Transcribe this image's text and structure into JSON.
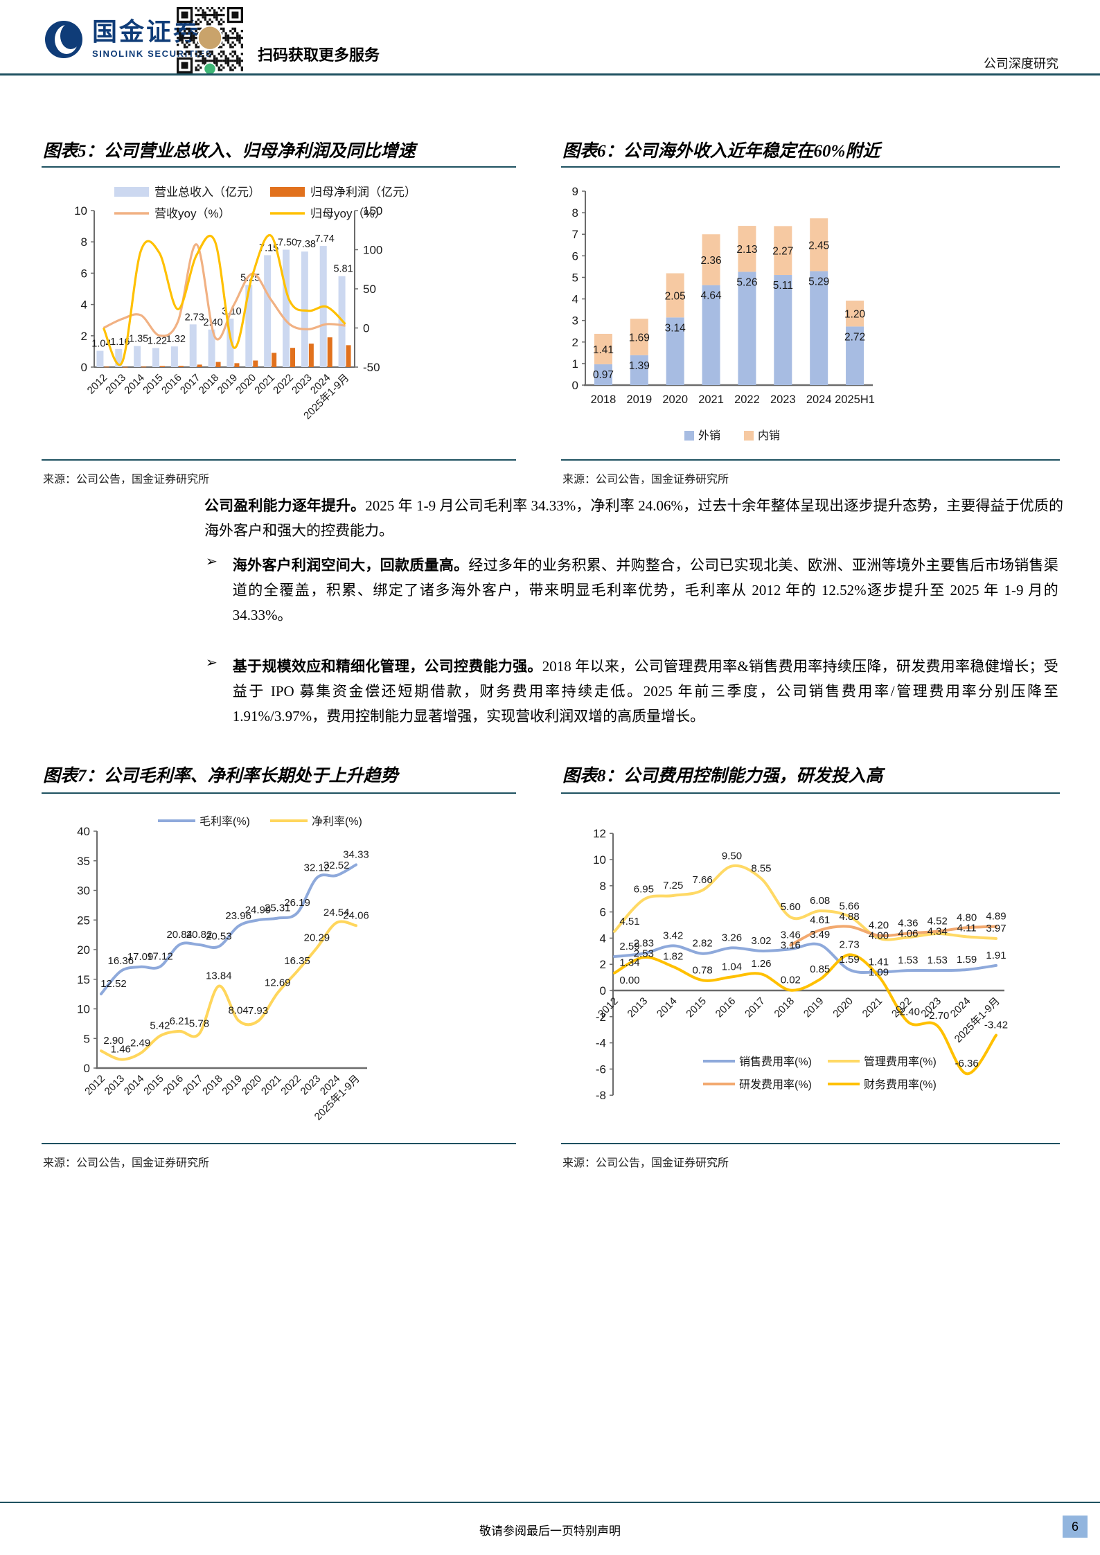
{
  "header": {
    "brand": "国金证券",
    "brand_en": "SINOLINK SECURITIES",
    "qr_caption": "扫码获取更多服务",
    "doc_type": "公司深度研究"
  },
  "sources": {
    "label": "来源：公司公告，国金证券研究所"
  },
  "content": {
    "bullet_marker": "➢",
    "p1_lead": "公司盈利能力逐年提升。",
    "p1_rest": "2025 年 1-9 月公司毛利率 34.33%，净利率 24.06%，过去十余年整体呈现出逐步提升态势，主要得益于优质的海外客户和强大的控费能力。",
    "b1_lead": "海外客户利润空间大，回款质量高。",
    "b1_rest": "经过多年的业务积累、并购整合，公司已实现北美、欧洲、亚洲等境外主要售后市场销售渠道的全覆盖，积累、绑定了诸多海外客户，带来明显毛利率优势，毛利率从 2012 年的 12.52%逐步提升至 2025 年 1-9 月的 34.33%。",
    "b2_lead": "基于规模效应和精细化管理，公司控费能力强。",
    "b2_rest": "2018 年以来，公司管理费用率&销售费用率持续压降，研发费用率稳健增长；受益于 IPO 募集资金偿还短期借款，财务费用率持续走低。2025 年前三季度，公司销售费用率/管理费用率分别压降至 1.91%/3.97%，费用控制能力显著增强，实现营收利润双增的高质量增长。"
  },
  "footer": {
    "disclaimer": "敬请参阅最后一页特别声明",
    "page": "6"
  },
  "chart_data": [
    {
      "type": "bar",
      "title": "图表5：公司营业总收入、归母净利润及同比增速",
      "categories": [
        "2012",
        "2013",
        "2014",
        "2015",
        "2016",
        "2017",
        "2018",
        "2019",
        "2020",
        "2021",
        "2022",
        "2023",
        "2024",
        "2025年1-9月"
      ],
      "left_axis": {
        "min": 0,
        "max": 10,
        "step": 2
      },
      "right_axis": {
        "min": -50,
        "max": 150,
        "step": 50
      },
      "series": [
        {
          "name": "营业总收入（亿元）",
          "kind": "bar",
          "axis": "left",
          "color": "#CCD8F0",
          "values": [
            1.04,
            1.16,
            1.35,
            1.22,
            1.32,
            2.73,
            2.4,
            3.1,
            5.25,
            7.15,
            7.5,
            7.38,
            7.74,
            5.81
          ],
          "labeled": true
        },
        {
          "name": "归母净利润（亿元）",
          "kind": "bar",
          "axis": "left",
          "color": "#E1711D",
          "values": [
            0.03,
            0.02,
            0.03,
            0.07,
            0.08,
            0.16,
            0.33,
            0.25,
            0.42,
            0.91,
            1.23,
            1.5,
            1.9,
            1.4
          ],
          "labeled": false
        },
        {
          "name": "营收yoy（%）",
          "kind": "line",
          "axis": "right",
          "color": "#F1B183",
          "values": [
            0,
            11.5,
            16.4,
            -9.6,
            8.2,
            106.8,
            -12.1,
            29.2,
            69.4,
            36.2,
            4.9,
            -1.6,
            4.9,
            3.0
          ],
          "labeled": false
        },
        {
          "name": "归母yoy（%）",
          "kind": "line",
          "axis": "right",
          "color": "#FFC000",
          "values": [
            0,
            -44,
            98,
            96,
            24,
            93,
            110,
            -25,
            67,
            118,
            35,
            22,
            27,
            5
          ],
          "labeled": false
        }
      ]
    },
    {
      "type": "bar",
      "title": "图表6：公司海外收入近年稳定在60%附近",
      "subtype": "stacked",
      "categories": [
        "2018",
        "2019",
        "2020",
        "2021",
        "2022",
        "2023",
        "2024",
        "2025H1"
      ],
      "y_axis": {
        "min": 0,
        "max": 9,
        "step": 1
      },
      "legend_position": "bottom",
      "series": [
        {
          "name": "外销",
          "color": "#A7BCE2",
          "values": [
            0.97,
            1.39,
            3.14,
            4.64,
            5.26,
            5.11,
            5.29,
            2.72
          ]
        },
        {
          "name": "内销",
          "color": "#F6C9A2",
          "values": [
            1.41,
            1.69,
            2.05,
            2.36,
            2.13,
            2.27,
            2.45,
            1.2
          ]
        }
      ]
    },
    {
      "type": "line",
      "title": "图表7：公司毛利率、净利率长期处于上升趋势",
      "categories": [
        "2012",
        "2013",
        "2014",
        "2015",
        "2016",
        "2017",
        "2018",
        "2019",
        "2020",
        "2021",
        "2022",
        "2023",
        "2024",
        "2025年1-9月"
      ],
      "y_axis": {
        "min": 0,
        "max": 40,
        "step": 5
      },
      "legend_position": "top",
      "series": [
        {
          "name": "毛利率(%)",
          "color": "#8EA9DB",
          "values": [
            12.52,
            16.36,
            17.09,
            17.12,
            20.84,
            20.82,
            20.53,
            23.96,
            24.99,
            25.31,
            26.19,
            32.12,
            32.52,
            34.33
          ],
          "labeled": true
        },
        {
          "name": "净利率(%)",
          "color": "#FFD65C",
          "values": [
            2.9,
            1.46,
            2.49,
            5.42,
            6.21,
            5.78,
            13.84,
            8.04,
            7.93,
            12.69,
            16.35,
            20.29,
            24.54,
            24.06
          ],
          "labeled": true
        }
      ]
    },
    {
      "type": "line",
      "title": "图表8：公司费用控制能力强，研发投入高",
      "categories": [
        "2012",
        "2013",
        "2014",
        "2015",
        "2016",
        "2017",
        "2018",
        "2019",
        "2020",
        "2021",
        "2022",
        "2023",
        "2024",
        "2025年1-9月"
      ],
      "y_axis": {
        "min": -8,
        "max": 12,
        "step": 2
      },
      "legend_position": "bottom",
      "series": [
        {
          "name": "销售费用率(%)",
          "color": "#8EA9DB",
          "values": [
            2.59,
            2.83,
            3.42,
            2.82,
            3.26,
            3.02,
            3.16,
            3.49,
            1.59,
            1.41,
            1.53,
            1.53,
            1.59,
            1.91
          ],
          "labeled": true
        },
        {
          "name": "管理费用率(%)",
          "color": "#FFD965",
          "values": [
            4.51,
            6.95,
            7.25,
            7.66,
            9.5,
            8.55,
            5.6,
            6.08,
            5.66,
            4.0,
            4.06,
            4.34,
            4.11,
            3.97
          ],
          "labeled": true
        },
        {
          "name": "研发费用率(%)",
          "color": "#F2A96F",
          "values": [
            0.0,
            null,
            null,
            null,
            null,
            null,
            3.46,
            4.61,
            4.88,
            4.2,
            4.36,
            4.52,
            4.8,
            4.89
          ],
          "labeled": true
        },
        {
          "name": "财务费用率(%)",
          "color": "#FFC000",
          "values": [
            1.34,
            2.53,
            1.82,
            0.78,
            1.04,
            1.26,
            0.02,
            0.85,
            2.73,
            1.09,
            -2.4,
            -2.7,
            -6.36,
            -3.42
          ],
          "labeled": true
        }
      ]
    }
  ]
}
